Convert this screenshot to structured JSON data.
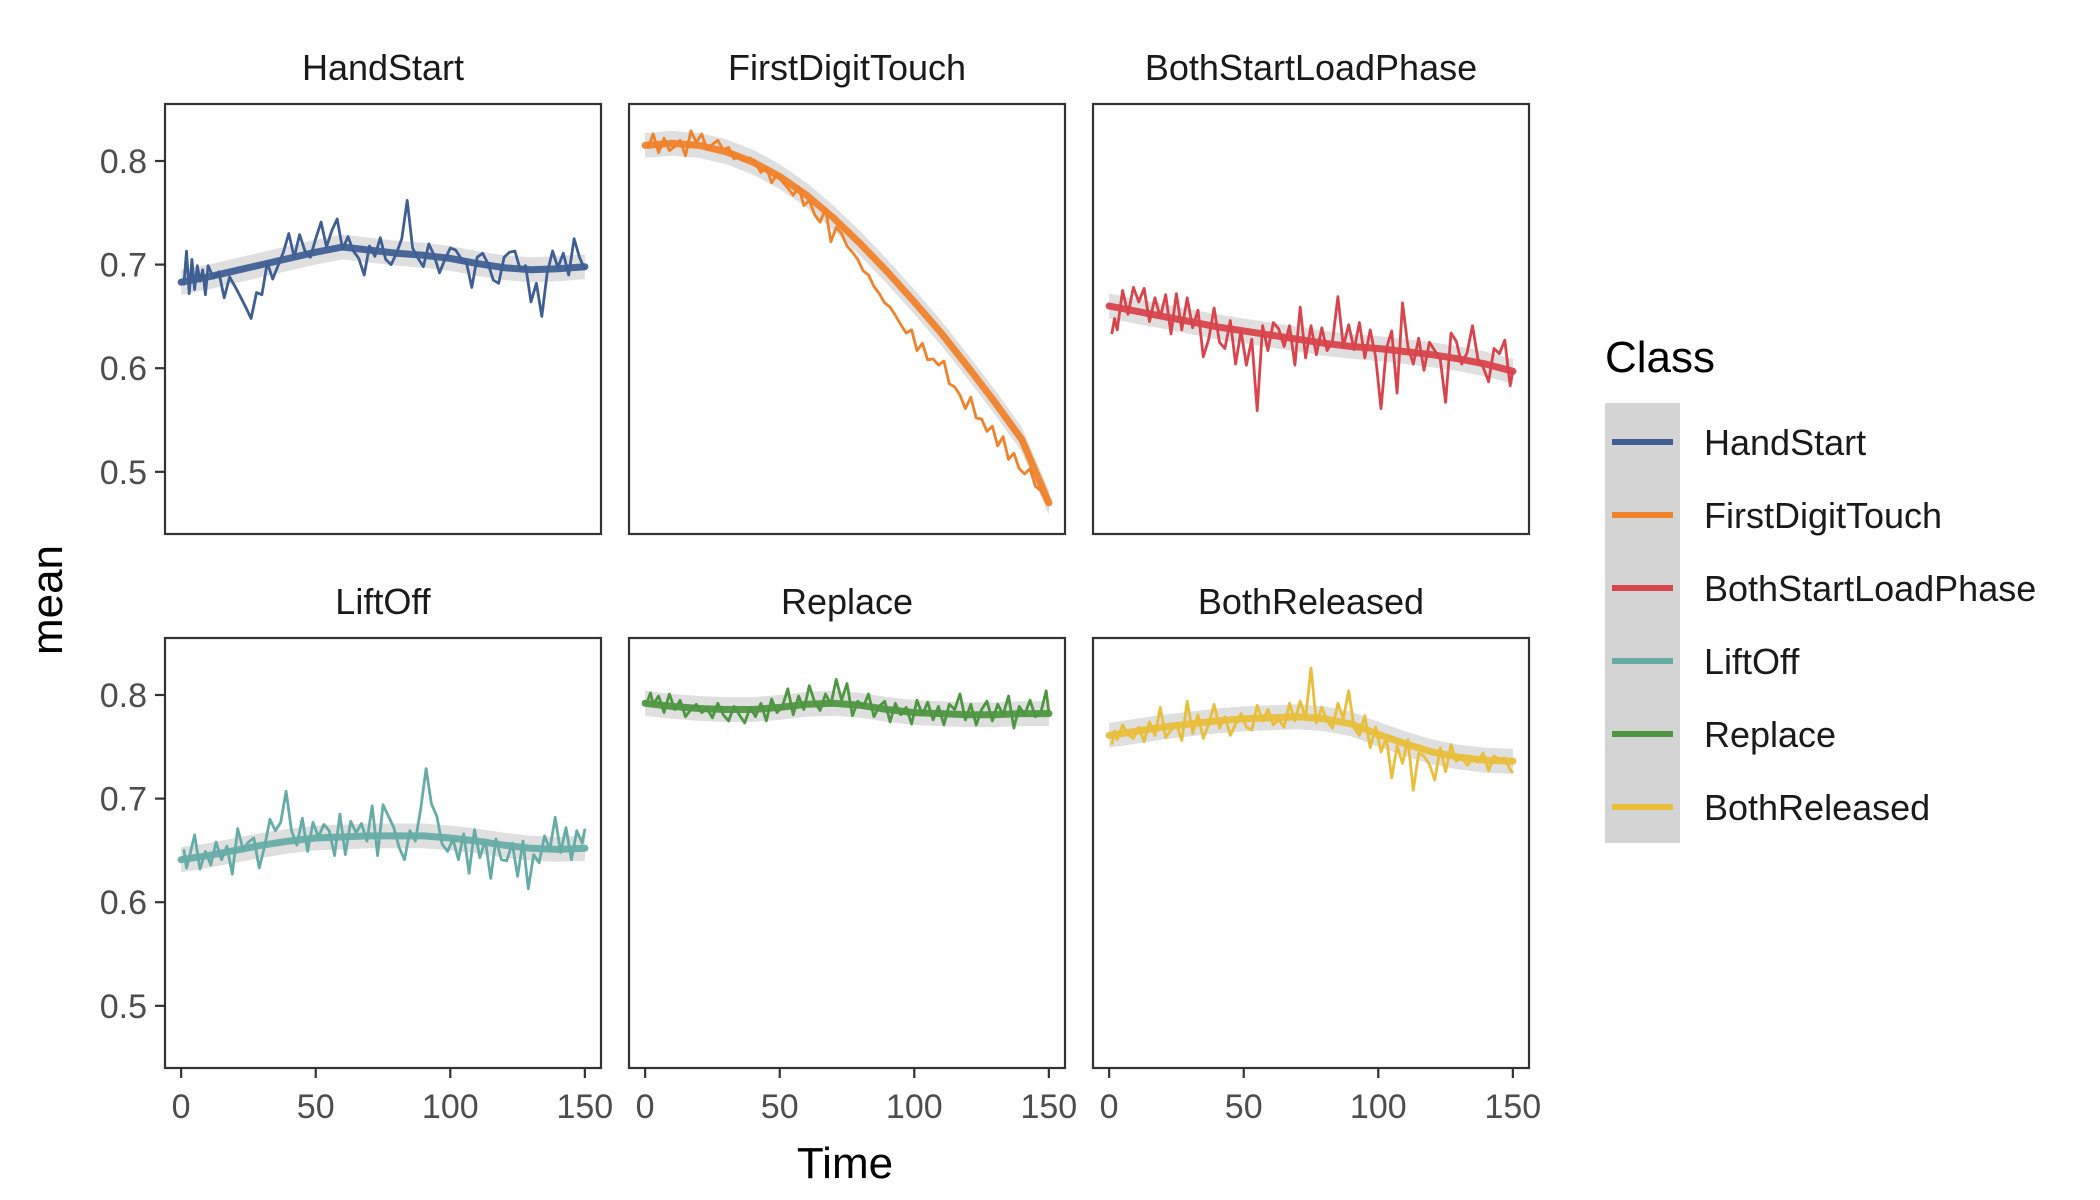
{
  "chart_data": {
    "type": "line",
    "xlabel": "Time",
    "ylabel": "mean",
    "xlim": [
      -6,
      156
    ],
    "ylim": [
      0.44,
      0.855
    ],
    "x_ticks": [
      0,
      50,
      100,
      150
    ],
    "x_tick_labels": [
      "0",
      "50",
      "100",
      "150"
    ],
    "y_ticks": [
      0.5,
      0.6,
      0.7,
      0.8
    ],
    "y_tick_labels": [
      "0.5",
      "0.6",
      "0.7",
      "0.8"
    ],
    "grid": false,
    "legend": {
      "title": "Class",
      "placement": "right",
      "entries": [
        "HandStart",
        "FirstDigitTouch",
        "BothStartLoadPhase",
        "LiftOff",
        "Replace",
        "BothReleased"
      ]
    },
    "facets": [
      {
        "name": "HandStart",
        "color": "#3F5F94",
        "x": [
          1,
          2,
          3,
          4,
          5,
          6,
          7,
          8,
          9,
          10,
          12,
          14,
          16,
          18,
          20,
          22,
          24,
          26,
          28,
          30,
          32,
          34,
          36,
          38,
          40,
          42,
          44,
          46,
          48,
          50,
          52,
          54,
          56,
          58,
          60,
          62,
          64,
          66,
          68,
          70,
          72,
          74,
          76,
          78,
          80,
          82,
          84,
          86,
          88,
          90,
          92,
          94,
          96,
          98,
          100,
          102,
          104,
          106,
          108,
          110,
          112,
          114,
          116,
          118,
          120,
          122,
          124,
          126,
          128,
          130,
          132,
          134,
          136,
          138,
          140,
          142,
          144,
          146,
          148,
          150
        ],
        "y": [
          0.68,
          0.713,
          0.672,
          0.705,
          0.676,
          0.699,
          0.684,
          0.695,
          0.671,
          0.699,
          0.687,
          0.693,
          0.668,
          0.688,
          0.679,
          0.669,
          0.659,
          0.648,
          0.673,
          0.671,
          0.702,
          0.686,
          0.699,
          0.712,
          0.73,
          0.707,
          0.729,
          0.713,
          0.707,
          0.725,
          0.741,
          0.717,
          0.733,
          0.744,
          0.715,
          0.727,
          0.713,
          0.706,
          0.69,
          0.718,
          0.708,
          0.726,
          0.705,
          0.7,
          0.711,
          0.725,
          0.762,
          0.716,
          0.706,
          0.698,
          0.72,
          0.709,
          0.692,
          0.705,
          0.716,
          0.714,
          0.706,
          0.702,
          0.678,
          0.707,
          0.711,
          0.701,
          0.685,
          0.682,
          0.707,
          0.712,
          0.713,
          0.695,
          0.699,
          0.664,
          0.682,
          0.65,
          0.692,
          0.713,
          0.697,
          0.711,
          0.69,
          0.725,
          0.707,
          0.695
        ],
        "smooth_x": [
          0,
          10,
          20,
          30,
          40,
          50,
          60,
          70,
          80,
          90,
          100,
          110,
          120,
          130,
          140,
          150
        ],
        "smooth_y": [
          0.683,
          0.688,
          0.694,
          0.7,
          0.706,
          0.712,
          0.717,
          0.714,
          0.711,
          0.709,
          0.706,
          0.701,
          0.697,
          0.695,
          0.696,
          0.698
        ]
      },
      {
        "name": "FirstDigitTouch",
        "color": "#F0822A",
        "x": [
          1,
          3,
          5,
          7,
          9,
          11,
          13,
          15,
          17,
          19,
          21,
          23,
          25,
          27,
          29,
          31,
          33,
          35,
          37,
          39,
          41,
          43,
          45,
          47,
          49,
          51,
          53,
          55,
          57,
          59,
          61,
          63,
          65,
          67,
          69,
          71,
          73,
          75,
          77,
          79,
          81,
          83,
          85,
          87,
          89,
          91,
          93,
          95,
          97,
          99,
          101,
          103,
          105,
          107,
          109,
          111,
          113,
          115,
          117,
          119,
          121,
          123,
          125,
          127,
          129,
          131,
          133,
          135,
          137,
          139,
          141,
          143,
          145,
          147,
          149,
          150
        ],
        "y": [
          0.812,
          0.826,
          0.808,
          0.822,
          0.81,
          0.814,
          0.82,
          0.805,
          0.829,
          0.818,
          0.826,
          0.811,
          0.816,
          0.82,
          0.811,
          0.813,
          0.802,
          0.806,
          0.8,
          0.803,
          0.798,
          0.789,
          0.794,
          0.779,
          0.787,
          0.78,
          0.774,
          0.767,
          0.775,
          0.757,
          0.762,
          0.748,
          0.741,
          0.754,
          0.722,
          0.736,
          0.73,
          0.718,
          0.712,
          0.705,
          0.694,
          0.69,
          0.679,
          0.672,
          0.663,
          0.659,
          0.651,
          0.642,
          0.634,
          0.637,
          0.617,
          0.624,
          0.608,
          0.609,
          0.603,
          0.607,
          0.585,
          0.582,
          0.574,
          0.561,
          0.572,
          0.552,
          0.551,
          0.539,
          0.544,
          0.525,
          0.534,
          0.512,
          0.518,
          0.503,
          0.498,
          0.503,
          0.486,
          0.482,
          0.471,
          0.468
        ],
        "smooth_x": [
          0,
          10,
          20,
          30,
          40,
          50,
          60,
          70,
          80,
          90,
          100,
          110,
          120,
          130,
          140,
          150
        ],
        "smooth_y": [
          0.815,
          0.817,
          0.815,
          0.809,
          0.799,
          0.785,
          0.767,
          0.745,
          0.72,
          0.693,
          0.664,
          0.634,
          0.601,
          0.567,
          0.531,
          0.47
        ]
      },
      {
        "name": "BothStartLoadPhase",
        "color": "#D9434B",
        "x": [
          1,
          2,
          3,
          5,
          7,
          9,
          11,
          13,
          15,
          17,
          19,
          21,
          23,
          25,
          27,
          29,
          31,
          33,
          35,
          37,
          39,
          41,
          43,
          45,
          47,
          49,
          51,
          53,
          55,
          57,
          59,
          61,
          63,
          65,
          67,
          69,
          71,
          73,
          75,
          77,
          79,
          81,
          83,
          85,
          87,
          89,
          91,
          93,
          95,
          97,
          99,
          101,
          103,
          105,
          107,
          109,
          111,
          113,
          115,
          117,
          119,
          121,
          123,
          125,
          127,
          129,
          131,
          133,
          135,
          137,
          139,
          141,
          143,
          145,
          147,
          149,
          150
        ],
        "y": [
          0.633,
          0.648,
          0.637,
          0.675,
          0.652,
          0.678,
          0.664,
          0.677,
          0.645,
          0.668,
          0.649,
          0.671,
          0.633,
          0.672,
          0.637,
          0.668,
          0.639,
          0.656,
          0.611,
          0.628,
          0.658,
          0.625,
          0.619,
          0.646,
          0.604,
          0.636,
          0.603,
          0.628,
          0.559,
          0.641,
          0.617,
          0.644,
          0.638,
          0.621,
          0.641,
          0.603,
          0.659,
          0.61,
          0.641,
          0.613,
          0.639,
          0.617,
          0.626,
          0.669,
          0.621,
          0.642,
          0.618,
          0.644,
          0.61,
          0.637,
          0.611,
          0.561,
          0.619,
          0.636,
          0.576,
          0.663,
          0.621,
          0.604,
          0.629,
          0.598,
          0.625,
          0.617,
          0.609,
          0.567,
          0.634,
          0.626,
          0.604,
          0.615,
          0.641,
          0.609,
          0.601,
          0.587,
          0.619,
          0.614,
          0.627,
          0.583,
          0.598
        ],
        "smooth_x": [
          0,
          10,
          20,
          30,
          40,
          50,
          60,
          70,
          80,
          90,
          100,
          110,
          120,
          130,
          140,
          150
        ],
        "smooth_y": [
          0.66,
          0.655,
          0.65,
          0.645,
          0.64,
          0.636,
          0.632,
          0.628,
          0.624,
          0.621,
          0.619,
          0.616,
          0.613,
          0.609,
          0.604,
          0.597
        ]
      },
      {
        "name": "LiftOff",
        "color": "#66ACA6",
        "x": [
          1,
          2,
          3,
          5,
          7,
          9,
          11,
          13,
          15,
          17,
          19,
          21,
          23,
          25,
          27,
          29,
          31,
          33,
          35,
          37,
          39,
          41,
          43,
          45,
          47,
          49,
          51,
          53,
          55,
          57,
          59,
          61,
          63,
          65,
          67,
          69,
          71,
          73,
          75,
          77,
          79,
          81,
          83,
          85,
          87,
          89,
          91,
          93,
          95,
          97,
          99,
          101,
          103,
          105,
          107,
          109,
          111,
          113,
          115,
          117,
          119,
          121,
          123,
          125,
          127,
          129,
          131,
          133,
          135,
          137,
          139,
          141,
          143,
          145,
          147,
          149,
          150
        ],
        "y": [
          0.651,
          0.633,
          0.643,
          0.665,
          0.632,
          0.649,
          0.636,
          0.658,
          0.641,
          0.654,
          0.627,
          0.671,
          0.651,
          0.658,
          0.662,
          0.633,
          0.654,
          0.68,
          0.669,
          0.677,
          0.707,
          0.669,
          0.655,
          0.681,
          0.649,
          0.677,
          0.663,
          0.675,
          0.669,
          0.645,
          0.685,
          0.646,
          0.678,
          0.667,
          0.676,
          0.659,
          0.693,
          0.645,
          0.694,
          0.683,
          0.672,
          0.653,
          0.641,
          0.669,
          0.659,
          0.69,
          0.729,
          0.695,
          0.683,
          0.656,
          0.649,
          0.661,
          0.641,
          0.666,
          0.628,
          0.67,
          0.643,
          0.66,
          0.623,
          0.661,
          0.641,
          0.64,
          0.657,
          0.625,
          0.659,
          0.613,
          0.646,
          0.638,
          0.664,
          0.651,
          0.682,
          0.648,
          0.672,
          0.641,
          0.669,
          0.657,
          0.671
        ],
        "smooth_x": [
          0,
          10,
          20,
          30,
          40,
          50,
          60,
          70,
          80,
          90,
          100,
          110,
          120,
          130,
          140,
          150
        ],
        "smooth_y": [
          0.641,
          0.645,
          0.65,
          0.655,
          0.659,
          0.662,
          0.663,
          0.664,
          0.664,
          0.664,
          0.662,
          0.659,
          0.655,
          0.652,
          0.651,
          0.652
        ]
      },
      {
        "name": "Replace",
        "color": "#4E9641",
        "x": [
          1,
          2,
          3,
          5,
          7,
          9,
          11,
          13,
          15,
          17,
          19,
          21,
          23,
          25,
          27,
          29,
          31,
          33,
          35,
          37,
          39,
          41,
          43,
          45,
          47,
          49,
          51,
          53,
          55,
          57,
          59,
          61,
          63,
          65,
          67,
          69,
          71,
          73,
          75,
          77,
          79,
          81,
          83,
          85,
          87,
          89,
          91,
          93,
          95,
          97,
          99,
          101,
          103,
          105,
          107,
          109,
          111,
          113,
          115,
          117,
          119,
          121,
          123,
          125,
          127,
          129,
          131,
          133,
          135,
          137,
          139,
          141,
          143,
          145,
          147,
          149,
          150
        ],
        "y": [
          0.795,
          0.802,
          0.791,
          0.799,
          0.783,
          0.801,
          0.786,
          0.795,
          0.779,
          0.786,
          0.791,
          0.783,
          0.787,
          0.778,
          0.792,
          0.781,
          0.775,
          0.789,
          0.781,
          0.773,
          0.788,
          0.779,
          0.792,
          0.775,
          0.796,
          0.783,
          0.789,
          0.806,
          0.781,
          0.799,
          0.786,
          0.809,
          0.793,
          0.785,
          0.801,
          0.791,
          0.815,
          0.795,
          0.811,
          0.78,
          0.794,
          0.788,
          0.801,
          0.779,
          0.789,
          0.794,
          0.774,
          0.792,
          0.781,
          0.788,
          0.772,
          0.795,
          0.781,
          0.793,
          0.776,
          0.789,
          0.771,
          0.791,
          0.786,
          0.801,
          0.776,
          0.791,
          0.771,
          0.786,
          0.794,
          0.775,
          0.791,
          0.781,
          0.799,
          0.768,
          0.789,
          0.781,
          0.795,
          0.779,
          0.783,
          0.804,
          0.783
        ],
        "smooth_x": [
          0,
          10,
          20,
          30,
          40,
          50,
          60,
          70,
          80,
          90,
          100,
          110,
          120,
          130,
          140,
          150
        ],
        "smooth_y": [
          0.792,
          0.789,
          0.787,
          0.786,
          0.786,
          0.788,
          0.791,
          0.792,
          0.79,
          0.786,
          0.783,
          0.782,
          0.781,
          0.781,
          0.782,
          0.782
        ]
      },
      {
        "name": "BothReleased",
        "color": "#E8BE3A",
        "x": [
          1,
          2,
          3,
          5,
          7,
          9,
          11,
          13,
          15,
          17,
          19,
          21,
          23,
          25,
          27,
          29,
          31,
          33,
          35,
          37,
          39,
          41,
          43,
          45,
          47,
          49,
          51,
          53,
          55,
          57,
          59,
          61,
          63,
          65,
          67,
          69,
          71,
          73,
          75,
          77,
          79,
          81,
          83,
          85,
          87,
          89,
          91,
          93,
          95,
          97,
          99,
          101,
          103,
          105,
          107,
          109,
          111,
          113,
          115,
          117,
          119,
          121,
          123,
          125,
          127,
          129,
          131,
          133,
          135,
          137,
          139,
          141,
          143,
          145,
          147,
          149,
          150
        ],
        "y": [
          0.752,
          0.765,
          0.757,
          0.771,
          0.762,
          0.758,
          0.769,
          0.755,
          0.774,
          0.761,
          0.788,
          0.759,
          0.766,
          0.772,
          0.756,
          0.794,
          0.763,
          0.781,
          0.758,
          0.772,
          0.791,
          0.768,
          0.779,
          0.761,
          0.772,
          0.782,
          0.769,
          0.766,
          0.79,
          0.775,
          0.786,
          0.771,
          0.776,
          0.769,
          0.792,
          0.775,
          0.794,
          0.778,
          0.826,
          0.773,
          0.788,
          0.775,
          0.768,
          0.792,
          0.777,
          0.804,
          0.768,
          0.761,
          0.78,
          0.749,
          0.769,
          0.745,
          0.759,
          0.72,
          0.751,
          0.734,
          0.757,
          0.708,
          0.744,
          0.741,
          0.733,
          0.718,
          0.749,
          0.726,
          0.752,
          0.736,
          0.741,
          0.732,
          0.738,
          0.735,
          0.744,
          0.727,
          0.741,
          0.738,
          0.739,
          0.728,
          0.725
        ],
        "smooth_x": [
          0,
          10,
          20,
          30,
          40,
          50,
          60,
          70,
          80,
          90,
          100,
          110,
          120,
          130,
          140,
          150
        ],
        "smooth_y": [
          0.761,
          0.765,
          0.769,
          0.772,
          0.775,
          0.777,
          0.778,
          0.779,
          0.777,
          0.772,
          0.762,
          0.753,
          0.745,
          0.74,
          0.737,
          0.736
        ]
      }
    ]
  }
}
